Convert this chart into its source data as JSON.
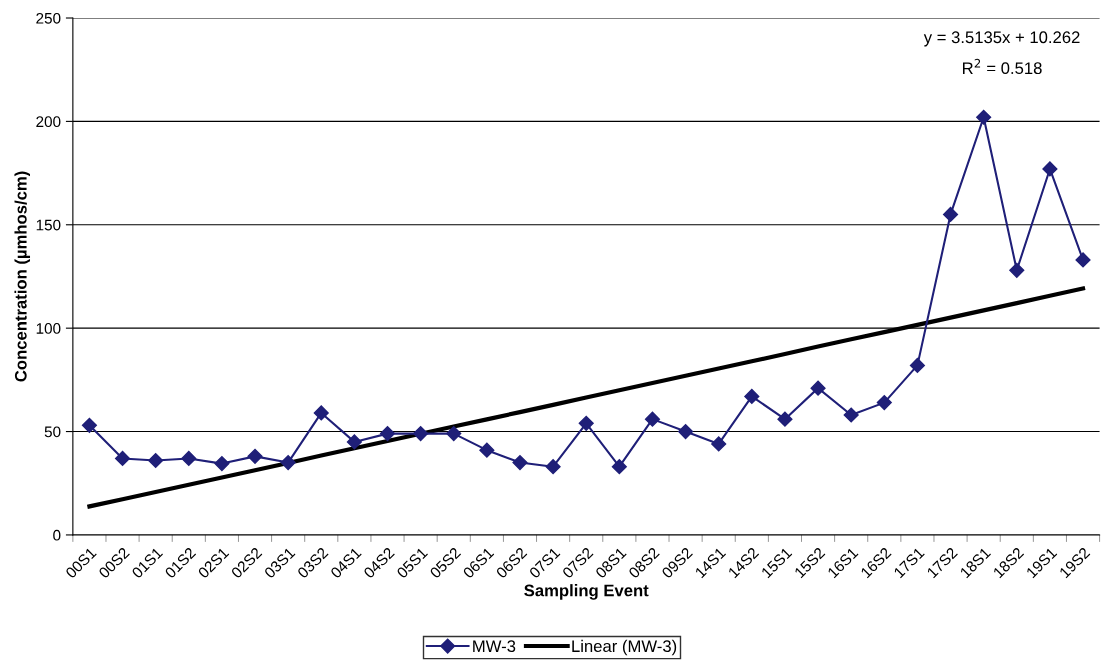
{
  "chart_data": {
    "type": "line",
    "xlabel": "Sampling Event",
    "ylabel": "Concentration (µmhos/cm)",
    "categories": [
      "00S1",
      "00S2",
      "01S1",
      "01S2",
      "02S1",
      "02S2",
      "03S1",
      "03S2",
      "04S1",
      "04S2",
      "05S1",
      "05S2",
      "06S1",
      "06S2",
      "07S1",
      "07S2",
      "08S1",
      "08S2",
      "09S2",
      "14S1",
      "14S2",
      "15S1",
      "15S2",
      "16S1",
      "16S2",
      "17S1",
      "17S2",
      "18S1",
      "18S2",
      "19S1",
      "19S2"
    ],
    "series": [
      {
        "name": "MW-3",
        "color": "#1f1f78",
        "marker": "diamond",
        "values": [
          53,
          37,
          36,
          37,
          34.5,
          38,
          35,
          59,
          45,
          49,
          49,
          49,
          41,
          35,
          33,
          54,
          33,
          56,
          50,
          44,
          67,
          56,
          71,
          58,
          64,
          82,
          155,
          202,
          128,
          177,
          133
        ]
      },
      {
        "name": "Linear (MW-3)",
        "color": "#000000",
        "marker": "none",
        "values": [
          13.8,
          17.3,
          20.8,
          24.3,
          27.8,
          31.3,
          34.8,
          38.4,
          41.9,
          45.4,
          48.9,
          52.4,
          55.9,
          59.4,
          62.9,
          66.5,
          70.0,
          73.5,
          77.0,
          80.5,
          84.0,
          87.5,
          91.1,
          94.6,
          98.1,
          101.6,
          105.1,
          108.6,
          112.1,
          115.7,
          119.2
        ]
      }
    ],
    "ylim": [
      0,
      250
    ],
    "yticks": [
      0,
      50,
      100,
      150,
      200,
      250
    ],
    "grid": "y",
    "legend": "bottom",
    "line_style": "solid",
    "annotations": [
      "y = 3.5135x + 10.262",
      "R$^{2}$ = 0.518"
    ]
  }
}
